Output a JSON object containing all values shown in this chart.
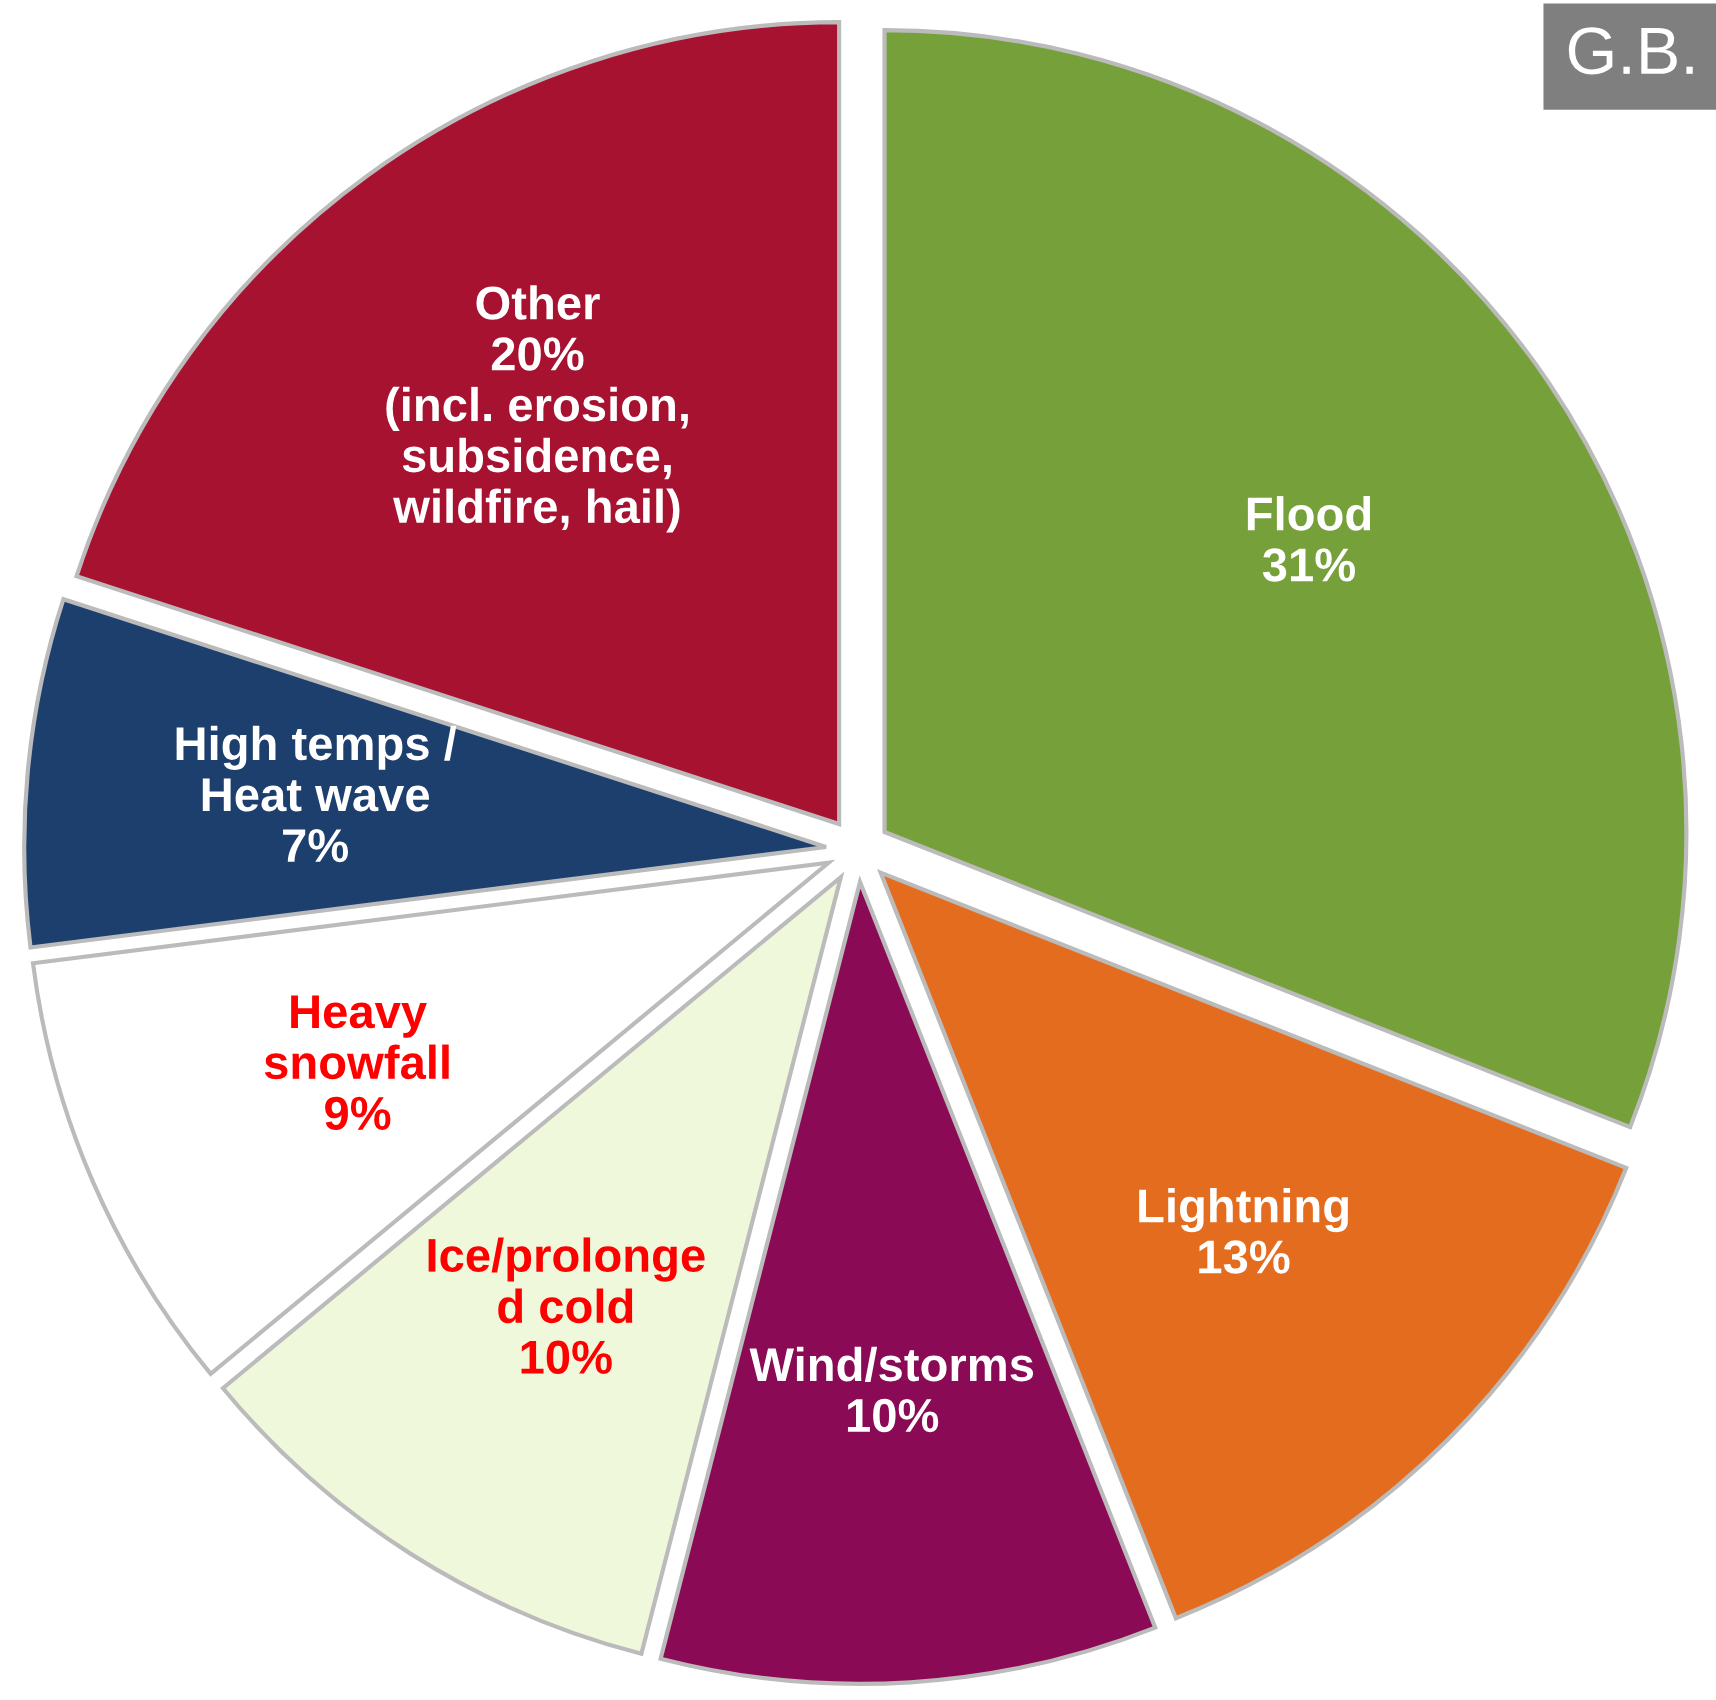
{
  "chart_data": {
    "type": "pie",
    "categories": [
      "Flood",
      "Lightning",
      "Wind/storms",
      "Ice/prolonge\nd cold",
      "Heavy\nsnowfall",
      "High temps /\nHeat wave",
      "Other"
    ],
    "values": [
      31,
      13,
      10,
      10,
      9,
      7,
      20
    ],
    "value_labels": [
      "31%",
      "13%",
      "10%",
      "10%",
      "9%",
      "7%",
      "20%\n(incl. erosion,\nsubsidence,\nwildfire, hail)"
    ],
    "colors": [
      "#76a03a",
      "#e46c1f",
      "#8a0a55",
      "#f0f8dc",
      "#ffffff",
      "#1d3f6e",
      "#a6122f"
    ],
    "annotations": [
      "G.B."
    ]
  }
}
